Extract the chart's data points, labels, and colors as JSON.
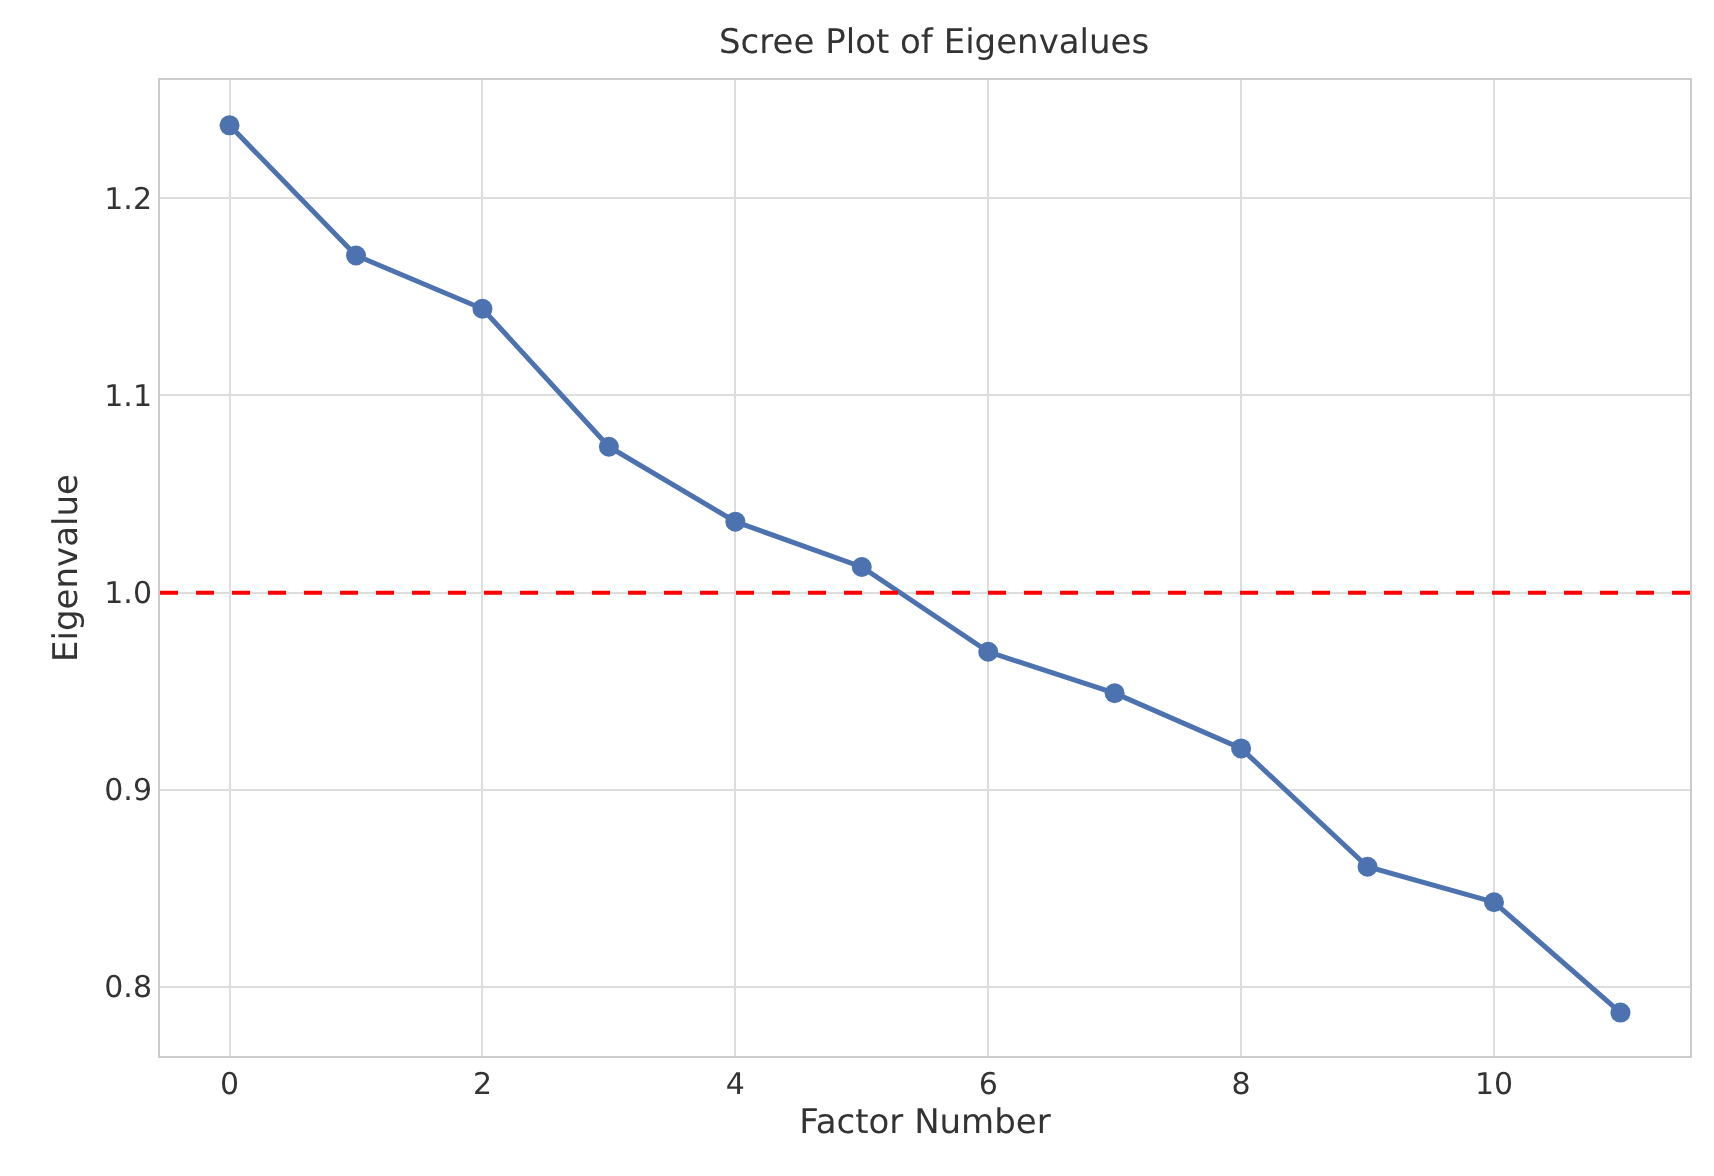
{
  "chart_data": {
    "type": "line",
    "title": "Scree Plot of Eigenvalues",
    "xlabel": "Factor Number",
    "ylabel": "Eigenvalue",
    "x": [
      0,
      1,
      2,
      3,
      4,
      5,
      6,
      7,
      8,
      9,
      10,
      11
    ],
    "series": [
      {
        "color": "#4c72b0",
        "values": [
          1.237,
          1.171,
          1.144,
          1.074,
          1.036,
          1.013,
          0.97,
          0.949,
          0.921,
          0.861,
          0.843,
          0.787
        ]
      }
    ],
    "xlim": [
      -0.55,
      11.55
    ],
    "xticks": [
      0,
      2,
      4,
      6,
      8,
      10
    ],
    "ylim": [
      0.765,
      1.26
    ],
    "yticks": [
      0.8,
      0.9,
      {
        "value": 1.0,
        "label": "1.0"
      },
      1.1,
      1.2
    ],
    "ref_lines": [
      {
        "axis": "y",
        "value": 1.0,
        "color": "#ff0000",
        "line_style": "dashed"
      }
    ],
    "grid": true,
    "marker": "circle",
    "line_style": "solid"
  }
}
